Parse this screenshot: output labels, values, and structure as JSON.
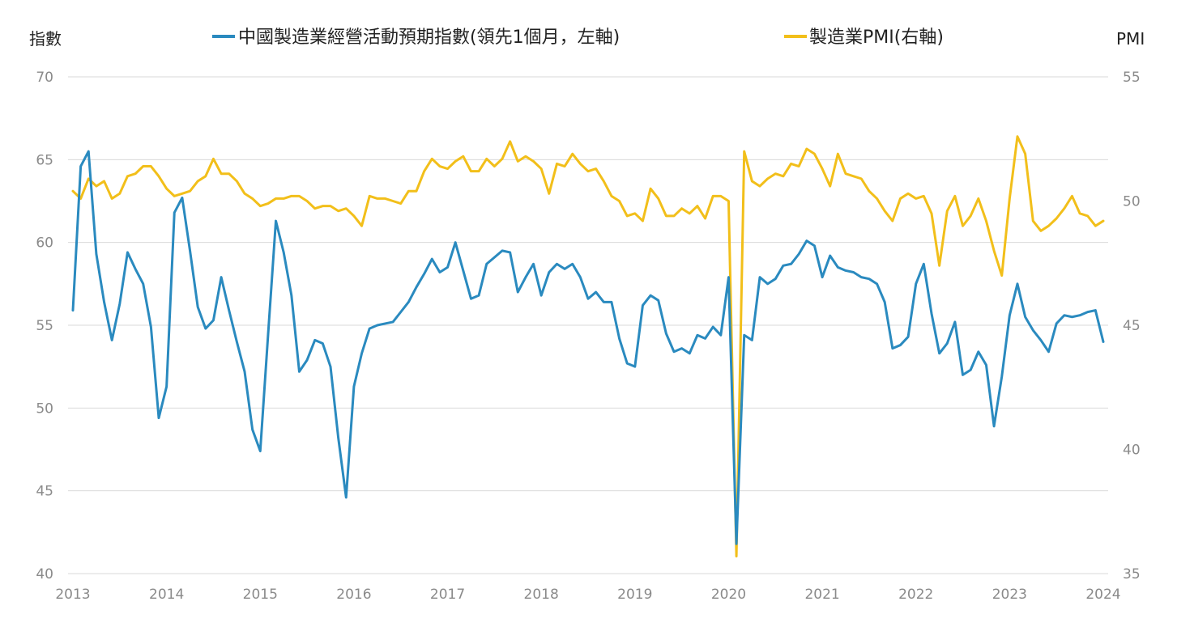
{
  "chart_data": {
    "type": "line",
    "x_start": "2013-01",
    "frequency": "monthly",
    "left_axis": {
      "label": "指數",
      "ylim": [
        40,
        70
      ],
      "ticks": [
        40,
        45,
        50,
        55,
        60,
        65,
        70
      ]
    },
    "right_axis": {
      "label": "PMI",
      "ylim": [
        35,
        55
      ],
      "ticks": [
        35,
        40,
        45,
        50,
        55
      ]
    },
    "x_ticks": [
      "2013",
      "2014",
      "2015",
      "2016",
      "2017",
      "2018",
      "2019",
      "2020",
      "2021",
      "2022",
      "2023",
      "2024"
    ],
    "grid": true,
    "legend_position": "top",
    "series": [
      {
        "name": "中國製造業經營活動預期指數(領先1個月，左軸)",
        "axis": "left",
        "color": "#2a8abf",
        "values": [
          55.9,
          64.6,
          65.5,
          59.3,
          56.4,
          54.1,
          56.3,
          59.4,
          58.4,
          57.5,
          54.9,
          49.4,
          51.3,
          61.8,
          62.7,
          59.5,
          56.1,
          54.8,
          55.3,
          57.9,
          55.9,
          54.0,
          52.2,
          48.7,
          47.4,
          54.4,
          61.3,
          59.4,
          56.8,
          52.2,
          52.9,
          54.1,
          53.9,
          52.5,
          48.2,
          44.6,
          51.3,
          53.3,
          54.8,
          55.0,
          55.1,
          55.2,
          55.8,
          56.4,
          57.3,
          58.1,
          59.0,
          58.2,
          58.5,
          60.0,
          58.3,
          56.6,
          56.8,
          58.7,
          59.1,
          59.5,
          59.4,
          57.0,
          57.9,
          58.7,
          56.8,
          58.2,
          58.7,
          58.4,
          58.7,
          57.9,
          56.6,
          57.0,
          56.4,
          56.4,
          54.2,
          52.7,
          52.5,
          56.2,
          56.8,
          56.5,
          54.5,
          53.4,
          53.6,
          53.3,
          54.4,
          54.2,
          54.9,
          54.4,
          57.9,
          41.8,
          54.4,
          54.1,
          57.9,
          57.5,
          57.8,
          58.6,
          58.7,
          59.3,
          60.1,
          59.8,
          57.9,
          59.2,
          58.5,
          58.3,
          58.2,
          57.9,
          57.8,
          57.5,
          56.4,
          53.6,
          53.8,
          54.3,
          57.5,
          58.7,
          55.7,
          53.3,
          53.9,
          55.2,
          52.0,
          52.3,
          53.4,
          52.6,
          48.9,
          51.9,
          55.6,
          57.5,
          55.5,
          54.7,
          54.1,
          53.4,
          55.1,
          55.6,
          55.5,
          55.6,
          55.8,
          55.9,
          54.0
        ]
      },
      {
        "name": "製造業PMI(右軸)",
        "axis": "right",
        "color": "#f2bf1a",
        "values": [
          50.4,
          50.1,
          50.9,
          50.6,
          50.8,
          50.1,
          50.3,
          51.0,
          51.1,
          51.4,
          51.4,
          51.0,
          50.5,
          50.2,
          50.3,
          50.4,
          50.8,
          51.0,
          51.7,
          51.1,
          51.1,
          50.8,
          50.3,
          50.1,
          49.8,
          49.9,
          50.1,
          50.1,
          50.2,
          50.2,
          50.0,
          49.7,
          49.8,
          49.8,
          49.6,
          49.7,
          49.4,
          49.0,
          50.2,
          50.1,
          50.1,
          50.0,
          49.9,
          50.4,
          50.4,
          51.2,
          51.7,
          51.4,
          51.3,
          51.6,
          51.8,
          51.2,
          51.2,
          51.7,
          51.4,
          51.7,
          52.4,
          51.6,
          51.8,
          51.6,
          51.3,
          50.3,
          51.5,
          51.4,
          51.9,
          51.5,
          51.2,
          51.3,
          50.8,
          50.2,
          50.0,
          49.4,
          49.5,
          49.2,
          50.5,
          50.1,
          49.4,
          49.4,
          49.7,
          49.5,
          49.8,
          49.3,
          50.2,
          50.2,
          50.0,
          35.7,
          52.0,
          50.8,
          50.6,
          50.9,
          51.1,
          51.0,
          51.5,
          51.4,
          52.1,
          51.9,
          51.3,
          50.6,
          51.9,
          51.1,
          51.0,
          50.9,
          50.4,
          50.1,
          49.6,
          49.2,
          50.1,
          50.3,
          50.1,
          50.2,
          49.5,
          47.4,
          49.6,
          50.2,
          49.0,
          49.4,
          50.1,
          49.2,
          48.0,
          47.0,
          50.1,
          52.6,
          51.9,
          49.2,
          48.8,
          49.0,
          49.3,
          49.7,
          50.2,
          49.5,
          49.4,
          49.0,
          49.2
        ]
      }
    ]
  }
}
